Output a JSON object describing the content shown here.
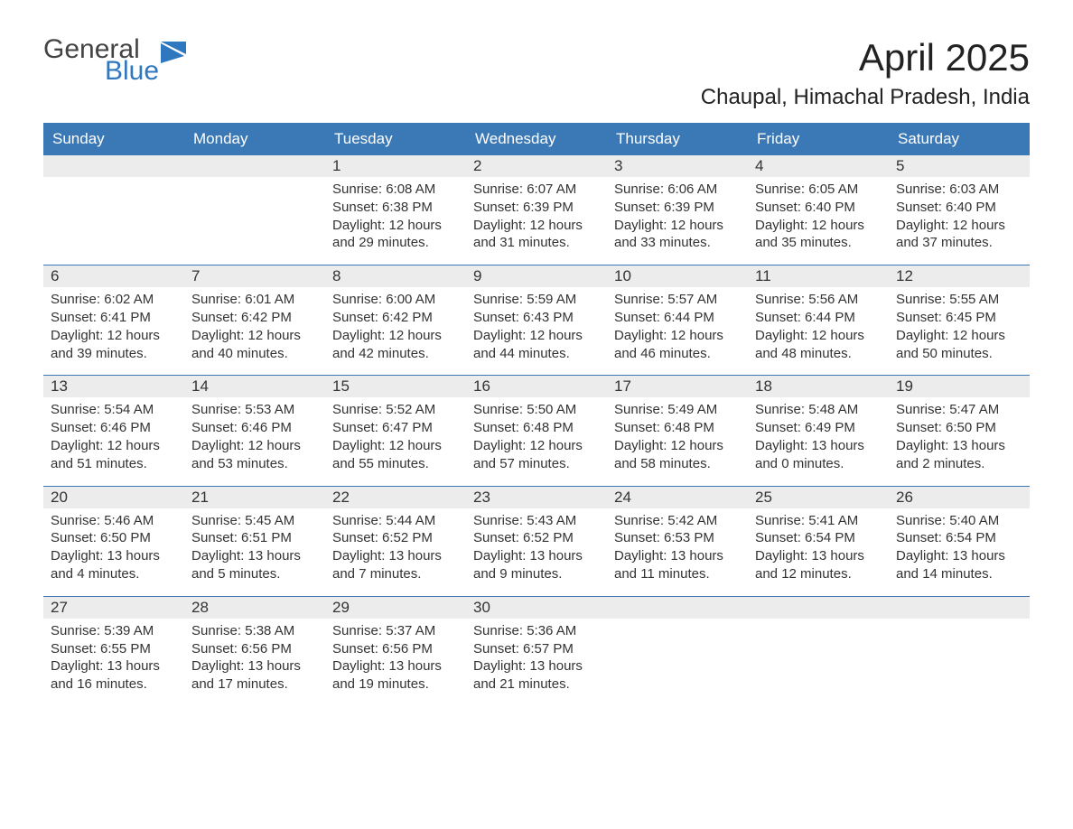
{
  "logo": {
    "line1": "General",
    "line2": "Blue",
    "flag_color": "#2f78bf"
  },
  "title": {
    "month": "April 2025",
    "location": "Chaupal, Himachal Pradesh, India"
  },
  "calendar": {
    "header_bg": "#3a78b6",
    "header_fg": "#ffffff",
    "row_divider_color": "#3a78b6",
    "daynum_bg": "#ececec",
    "text_color": "#333333",
    "columns": [
      "Sunday",
      "Monday",
      "Tuesday",
      "Wednesday",
      "Thursday",
      "Friday",
      "Saturday"
    ],
    "weeks": [
      [
        {
          "num": "",
          "sunrise": "",
          "sunset": "",
          "daylight": ""
        },
        {
          "num": "",
          "sunrise": "",
          "sunset": "",
          "daylight": ""
        },
        {
          "num": "1",
          "sunrise": "Sunrise: 6:08 AM",
          "sunset": "Sunset: 6:38 PM",
          "daylight": "Daylight: 12 hours and 29 minutes."
        },
        {
          "num": "2",
          "sunrise": "Sunrise: 6:07 AM",
          "sunset": "Sunset: 6:39 PM",
          "daylight": "Daylight: 12 hours and 31 minutes."
        },
        {
          "num": "3",
          "sunrise": "Sunrise: 6:06 AM",
          "sunset": "Sunset: 6:39 PM",
          "daylight": "Daylight: 12 hours and 33 minutes."
        },
        {
          "num": "4",
          "sunrise": "Sunrise: 6:05 AM",
          "sunset": "Sunset: 6:40 PM",
          "daylight": "Daylight: 12 hours and 35 minutes."
        },
        {
          "num": "5",
          "sunrise": "Sunrise: 6:03 AM",
          "sunset": "Sunset: 6:40 PM",
          "daylight": "Daylight: 12 hours and 37 minutes."
        }
      ],
      [
        {
          "num": "6",
          "sunrise": "Sunrise: 6:02 AM",
          "sunset": "Sunset: 6:41 PM",
          "daylight": "Daylight: 12 hours and 39 minutes."
        },
        {
          "num": "7",
          "sunrise": "Sunrise: 6:01 AM",
          "sunset": "Sunset: 6:42 PM",
          "daylight": "Daylight: 12 hours and 40 minutes."
        },
        {
          "num": "8",
          "sunrise": "Sunrise: 6:00 AM",
          "sunset": "Sunset: 6:42 PM",
          "daylight": "Daylight: 12 hours and 42 minutes."
        },
        {
          "num": "9",
          "sunrise": "Sunrise: 5:59 AM",
          "sunset": "Sunset: 6:43 PM",
          "daylight": "Daylight: 12 hours and 44 minutes."
        },
        {
          "num": "10",
          "sunrise": "Sunrise: 5:57 AM",
          "sunset": "Sunset: 6:44 PM",
          "daylight": "Daylight: 12 hours and 46 minutes."
        },
        {
          "num": "11",
          "sunrise": "Sunrise: 5:56 AM",
          "sunset": "Sunset: 6:44 PM",
          "daylight": "Daylight: 12 hours and 48 minutes."
        },
        {
          "num": "12",
          "sunrise": "Sunrise: 5:55 AM",
          "sunset": "Sunset: 6:45 PM",
          "daylight": "Daylight: 12 hours and 50 minutes."
        }
      ],
      [
        {
          "num": "13",
          "sunrise": "Sunrise: 5:54 AM",
          "sunset": "Sunset: 6:46 PM",
          "daylight": "Daylight: 12 hours and 51 minutes."
        },
        {
          "num": "14",
          "sunrise": "Sunrise: 5:53 AM",
          "sunset": "Sunset: 6:46 PM",
          "daylight": "Daylight: 12 hours and 53 minutes."
        },
        {
          "num": "15",
          "sunrise": "Sunrise: 5:52 AM",
          "sunset": "Sunset: 6:47 PM",
          "daylight": "Daylight: 12 hours and 55 minutes."
        },
        {
          "num": "16",
          "sunrise": "Sunrise: 5:50 AM",
          "sunset": "Sunset: 6:48 PM",
          "daylight": "Daylight: 12 hours and 57 minutes."
        },
        {
          "num": "17",
          "sunrise": "Sunrise: 5:49 AM",
          "sunset": "Sunset: 6:48 PM",
          "daylight": "Daylight: 12 hours and 58 minutes."
        },
        {
          "num": "18",
          "sunrise": "Sunrise: 5:48 AM",
          "sunset": "Sunset: 6:49 PM",
          "daylight": "Daylight: 13 hours and 0 minutes."
        },
        {
          "num": "19",
          "sunrise": "Sunrise: 5:47 AM",
          "sunset": "Sunset: 6:50 PM",
          "daylight": "Daylight: 13 hours and 2 minutes."
        }
      ],
      [
        {
          "num": "20",
          "sunrise": "Sunrise: 5:46 AM",
          "sunset": "Sunset: 6:50 PM",
          "daylight": "Daylight: 13 hours and 4 minutes."
        },
        {
          "num": "21",
          "sunrise": "Sunrise: 5:45 AM",
          "sunset": "Sunset: 6:51 PM",
          "daylight": "Daylight: 13 hours and 5 minutes."
        },
        {
          "num": "22",
          "sunrise": "Sunrise: 5:44 AM",
          "sunset": "Sunset: 6:52 PM",
          "daylight": "Daylight: 13 hours and 7 minutes."
        },
        {
          "num": "23",
          "sunrise": "Sunrise: 5:43 AM",
          "sunset": "Sunset: 6:52 PM",
          "daylight": "Daylight: 13 hours and 9 minutes."
        },
        {
          "num": "24",
          "sunrise": "Sunrise: 5:42 AM",
          "sunset": "Sunset: 6:53 PM",
          "daylight": "Daylight: 13 hours and 11 minutes."
        },
        {
          "num": "25",
          "sunrise": "Sunrise: 5:41 AM",
          "sunset": "Sunset: 6:54 PM",
          "daylight": "Daylight: 13 hours and 12 minutes."
        },
        {
          "num": "26",
          "sunrise": "Sunrise: 5:40 AM",
          "sunset": "Sunset: 6:54 PM",
          "daylight": "Daylight: 13 hours and 14 minutes."
        }
      ],
      [
        {
          "num": "27",
          "sunrise": "Sunrise: 5:39 AM",
          "sunset": "Sunset: 6:55 PM",
          "daylight": "Daylight: 13 hours and 16 minutes."
        },
        {
          "num": "28",
          "sunrise": "Sunrise: 5:38 AM",
          "sunset": "Sunset: 6:56 PM",
          "daylight": "Daylight: 13 hours and 17 minutes."
        },
        {
          "num": "29",
          "sunrise": "Sunrise: 5:37 AM",
          "sunset": "Sunset: 6:56 PM",
          "daylight": "Daylight: 13 hours and 19 minutes."
        },
        {
          "num": "30",
          "sunrise": "Sunrise: 5:36 AM",
          "sunset": "Sunset: 6:57 PM",
          "daylight": "Daylight: 13 hours and 21 minutes."
        },
        {
          "num": "",
          "sunrise": "",
          "sunset": "",
          "daylight": ""
        },
        {
          "num": "",
          "sunrise": "",
          "sunset": "",
          "daylight": ""
        },
        {
          "num": "",
          "sunrise": "",
          "sunset": "",
          "daylight": ""
        }
      ]
    ]
  }
}
